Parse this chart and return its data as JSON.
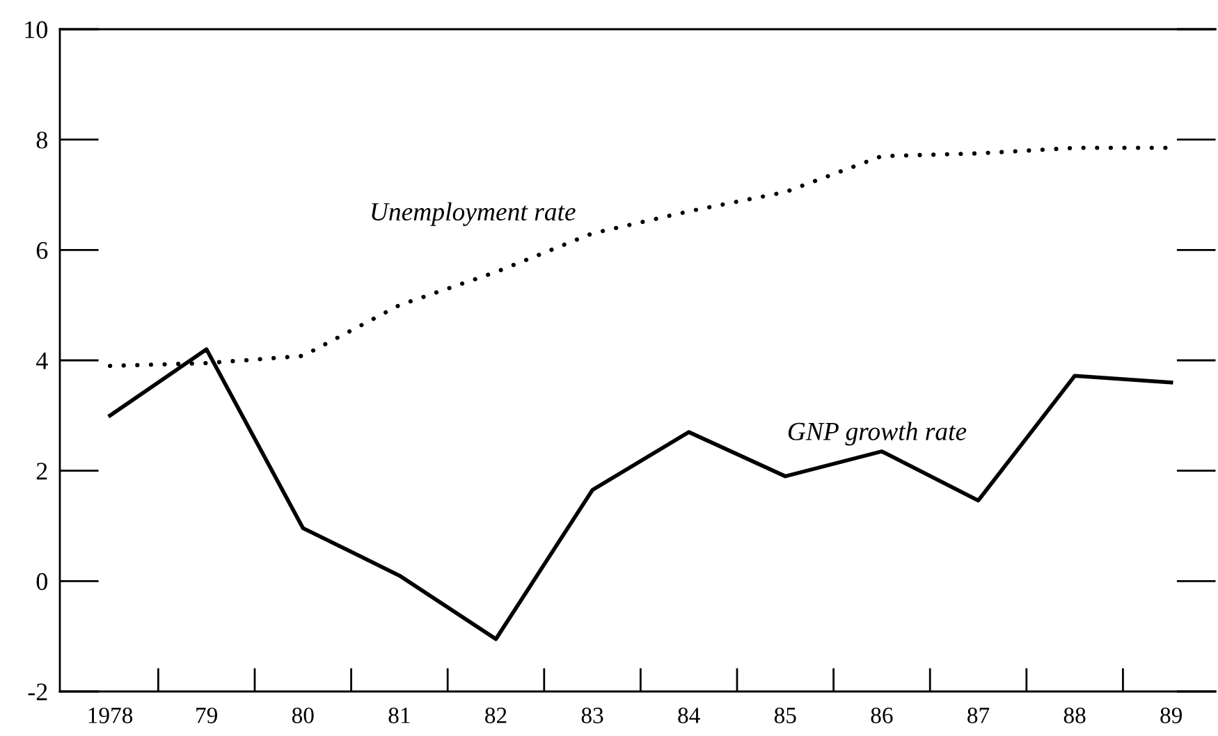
{
  "chart_data": {
    "type": "line",
    "categories": [
      "1978",
      "79",
      "80",
      "81",
      "82",
      "83",
      "84",
      "85",
      "86",
      "87",
      "88",
      "89"
    ],
    "series": [
      {
        "name": "Unemployment rate",
        "color": "#000000",
        "line_style": "dotted",
        "values": [
          3.9,
          3.95,
          4.08,
          5.0,
          5.6,
          6.3,
          6.7,
          7.05,
          7.7,
          7.75,
          7.85,
          7.85
        ]
      },
      {
        "name": "GNP growth rate",
        "color": "#000000",
        "line_style": "solid",
        "values": [
          3.0,
          4.2,
          0.96,
          0.1,
          -1.05,
          1.65,
          2.7,
          1.9,
          2.35,
          1.46,
          3.72,
          3.6
        ]
      }
    ],
    "ylim": [
      -2,
      10
    ],
    "yticks": [
      -2,
      0,
      2,
      4,
      6,
      8,
      10
    ],
    "grid": false,
    "legend": false,
    "marker": "none"
  }
}
